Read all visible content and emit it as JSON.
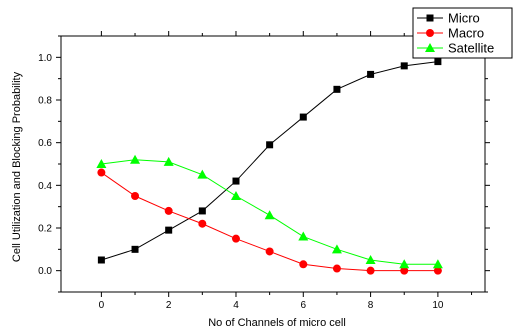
{
  "chart_data": {
    "type": "line",
    "xlabel": "No of Channels of micro cell",
    "ylabel": "Cell Utilization and Blocking Probability",
    "xlim": [
      -1.2,
      11.4
    ],
    "ylim": [
      -0.1,
      1.1
    ],
    "xticks": [
      0,
      2,
      4,
      6,
      8,
      10
    ],
    "yticks": [
      0.0,
      0.2,
      0.4,
      0.6,
      0.8,
      1.0
    ],
    "ytick_labels": [
      "0.0",
      "0.2",
      "0.4",
      "0.6",
      "0.8",
      "1.0"
    ],
    "grid": false,
    "legend_position": "top-right",
    "x": [
      0,
      1,
      2,
      3,
      4,
      5,
      6,
      7,
      8,
      9,
      10
    ],
    "series": [
      {
        "name": "Micro",
        "color": "#000000",
        "marker": "square",
        "values": [
          0.05,
          0.1,
          0.19,
          0.28,
          0.42,
          0.59,
          0.72,
          0.85,
          0.92,
          0.96,
          0.98
        ]
      },
      {
        "name": "Macro",
        "color": "#ff0000",
        "marker": "circle",
        "values": [
          0.46,
          0.35,
          0.28,
          0.22,
          0.15,
          0.09,
          0.03,
          0.01,
          0.0,
          0.0,
          0.0
        ]
      },
      {
        "name": "Satellite",
        "color": "#00ff00",
        "marker": "triangle",
        "values": [
          0.5,
          0.52,
          0.51,
          0.45,
          0.35,
          0.26,
          0.16,
          0.1,
          0.05,
          0.03,
          0.03
        ]
      }
    ]
  }
}
